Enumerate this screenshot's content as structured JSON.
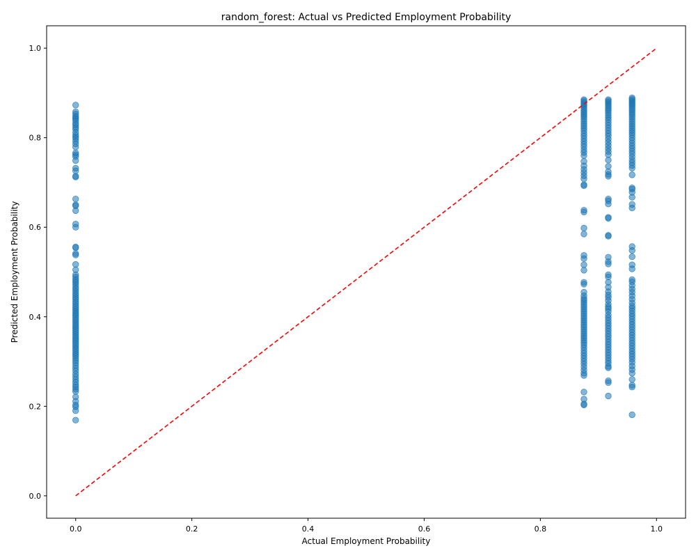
{
  "chart_data": {
    "type": "scatter",
    "title": "random_forest: Actual vs Predicted Employment Probability",
    "xlabel": "Actual Employment Probability",
    "ylabel": "Predicted Employment Probability",
    "xlim": [
      -0.05,
      1.05
    ],
    "ylim": [
      -0.05,
      1.05
    ],
    "xticks": [
      "0.0",
      "0.2",
      "0.4",
      "0.6",
      "0.8",
      "1.0"
    ],
    "yticks": [
      "0.0",
      "0.2",
      "0.4",
      "0.6",
      "0.8",
      "1.0"
    ],
    "grid": false,
    "point_color": "#1f77b4",
    "point_alpha": 0.55,
    "reference_line": {
      "x": [
        0,
        1
      ],
      "y": [
        0,
        1
      ],
      "color": "#ff0000",
      "style": "dashed"
    },
    "series": [
      {
        "x": 0.0,
        "y": [
          0.873,
          0.858,
          0.853,
          0.848,
          0.845,
          0.842,
          0.838,
          0.832,
          0.828,
          0.823,
          0.819,
          0.812,
          0.806,
          0.802,
          0.798,
          0.792,
          0.786,
          0.779,
          0.766,
          0.762,
          0.758,
          0.749,
          0.732,
          0.726,
          0.714,
          0.712,
          0.663,
          0.65,
          0.648,
          0.637,
          0.607,
          0.6,
          0.556,
          0.554,
          0.541,
          0.538,
          0.517,
          0.505,
          0.494,
          0.489,
          0.484,
          0.48,
          0.476,
          0.471,
          0.466,
          0.462,
          0.457,
          0.452,
          0.448,
          0.443,
          0.439,
          0.434,
          0.43,
          0.425,
          0.421,
          0.417,
          0.413,
          0.409,
          0.405,
          0.401,
          0.397,
          0.393,
          0.389,
          0.385,
          0.381,
          0.377,
          0.373,
          0.369,
          0.365,
          0.361,
          0.357,
          0.353,
          0.349,
          0.345,
          0.341,
          0.337,
          0.333,
          0.329,
          0.325,
          0.32,
          0.316,
          0.312,
          0.307,
          0.302,
          0.297,
          0.291,
          0.285,
          0.279,
          0.272,
          0.266,
          0.26,
          0.254,
          0.248,
          0.243,
          0.238,
          0.233,
          0.221,
          0.211,
          0.203,
          0.199,
          0.19,
          0.169
        ]
      },
      {
        "x": 0.875,
        "y": [
          0.885,
          0.882,
          0.879,
          0.876,
          0.873,
          0.87,
          0.866,
          0.862,
          0.858,
          0.854,
          0.85,
          0.846,
          0.841,
          0.836,
          0.831,
          0.826,
          0.821,
          0.816,
          0.81,
          0.804,
          0.798,
          0.792,
          0.786,
          0.78,
          0.773,
          0.767,
          0.76,
          0.747,
          0.737,
          0.729,
          0.722,
          0.715,
          0.708,
          0.695,
          0.693,
          0.638,
          0.634,
          0.598,
          0.585,
          0.537,
          0.53,
          0.516,
          0.504,
          0.477,
          0.473,
          0.455,
          0.447,
          0.441,
          0.437,
          0.432,
          0.427,
          0.422,
          0.417,
          0.412,
          0.407,
          0.402,
          0.397,
          0.392,
          0.387,
          0.382,
          0.377,
          0.372,
          0.367,
          0.362,
          0.357,
          0.352,
          0.347,
          0.342,
          0.337,
          0.331,
          0.325,
          0.319,
          0.313,
          0.307,
          0.301,
          0.295,
          0.288,
          0.281,
          0.274,
          0.269,
          0.232,
          0.216,
          0.205,
          0.203
        ]
      },
      {
        "x": 0.917,
        "y": [
          0.885,
          0.882,
          0.879,
          0.876,
          0.872,
          0.868,
          0.864,
          0.86,
          0.855,
          0.85,
          0.845,
          0.84,
          0.834,
          0.828,
          0.822,
          0.816,
          0.81,
          0.804,
          0.797,
          0.79,
          0.783,
          0.776,
          0.769,
          0.762,
          0.75,
          0.736,
          0.724,
          0.718,
          0.714,
          0.663,
          0.659,
          0.652,
          0.622,
          0.62,
          0.582,
          0.58,
          0.533,
          0.523,
          0.518,
          0.494,
          0.489,
          0.477,
          0.466,
          0.456,
          0.449,
          0.443,
          0.436,
          0.428,
          0.422,
          0.418,
          0.412,
          0.404,
          0.398,
          0.392,
          0.386,
          0.38,
          0.374,
          0.368,
          0.362,
          0.356,
          0.35,
          0.344,
          0.338,
          0.332,
          0.326,
          0.32,
          0.314,
          0.308,
          0.302,
          0.296,
          0.289,
          0.286,
          0.257,
          0.253,
          0.223
        ]
      },
      {
        "x": 0.958,
        "y": [
          0.889,
          0.886,
          0.883,
          0.88,
          0.877,
          0.874,
          0.871,
          0.867,
          0.863,
          0.859,
          0.855,
          0.851,
          0.846,
          0.841,
          0.836,
          0.831,
          0.826,
          0.821,
          0.816,
          0.811,
          0.806,
          0.8,
          0.794,
          0.788,
          0.782,
          0.776,
          0.77,
          0.764,
          0.757,
          0.75,
          0.744,
          0.738,
          0.732,
          0.717,
          0.688,
          0.685,
          0.678,
          0.667,
          0.651,
          0.643,
          0.557,
          0.548,
          0.534,
          0.516,
          0.507,
          0.483,
          0.478,
          0.47,
          0.462,
          0.455,
          0.447,
          0.439,
          0.431,
          0.424,
          0.419,
          0.413,
          0.407,
          0.401,
          0.395,
          0.389,
          0.383,
          0.377,
          0.371,
          0.365,
          0.359,
          0.353,
          0.347,
          0.341,
          0.335,
          0.329,
          0.323,
          0.317,
          0.311,
          0.305,
          0.298,
          0.29,
          0.282,
          0.274,
          0.26,
          0.247,
          0.243,
          0.181
        ]
      }
    ]
  }
}
